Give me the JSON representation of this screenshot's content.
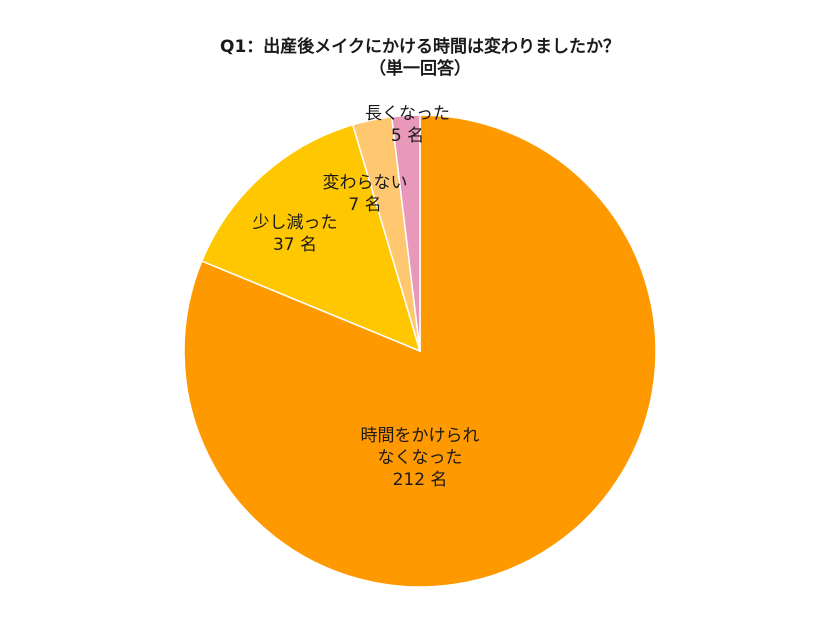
{
  "chart_data": {
    "type": "pie",
    "title": "Q1：出産後メイクにかける時間は変わりましたか？",
    "subtitle": "（単一回答）",
    "unit": "名",
    "start_angle_deg": 0,
    "direction": "clockwise",
    "categories": [
      "時間をかけられなくなった",
      "少し減った",
      "変わらない",
      "長くなった"
    ],
    "values": [
      212,
      37,
      7,
      5
    ],
    "colors": [
      "#FF9900",
      "#FFC700",
      "#FFC870",
      "#E899BA"
    ],
    "data_labels": [
      {
        "line1": "時間をかけられ",
        "line2": "なくなった",
        "value": "212 名"
      },
      {
        "line1": "少し減った",
        "value": "37 名"
      },
      {
        "line1": "変わらない",
        "value": "7 名"
      },
      {
        "line1": "長くなった",
        "value": "5 名"
      }
    ],
    "legend": "none"
  }
}
